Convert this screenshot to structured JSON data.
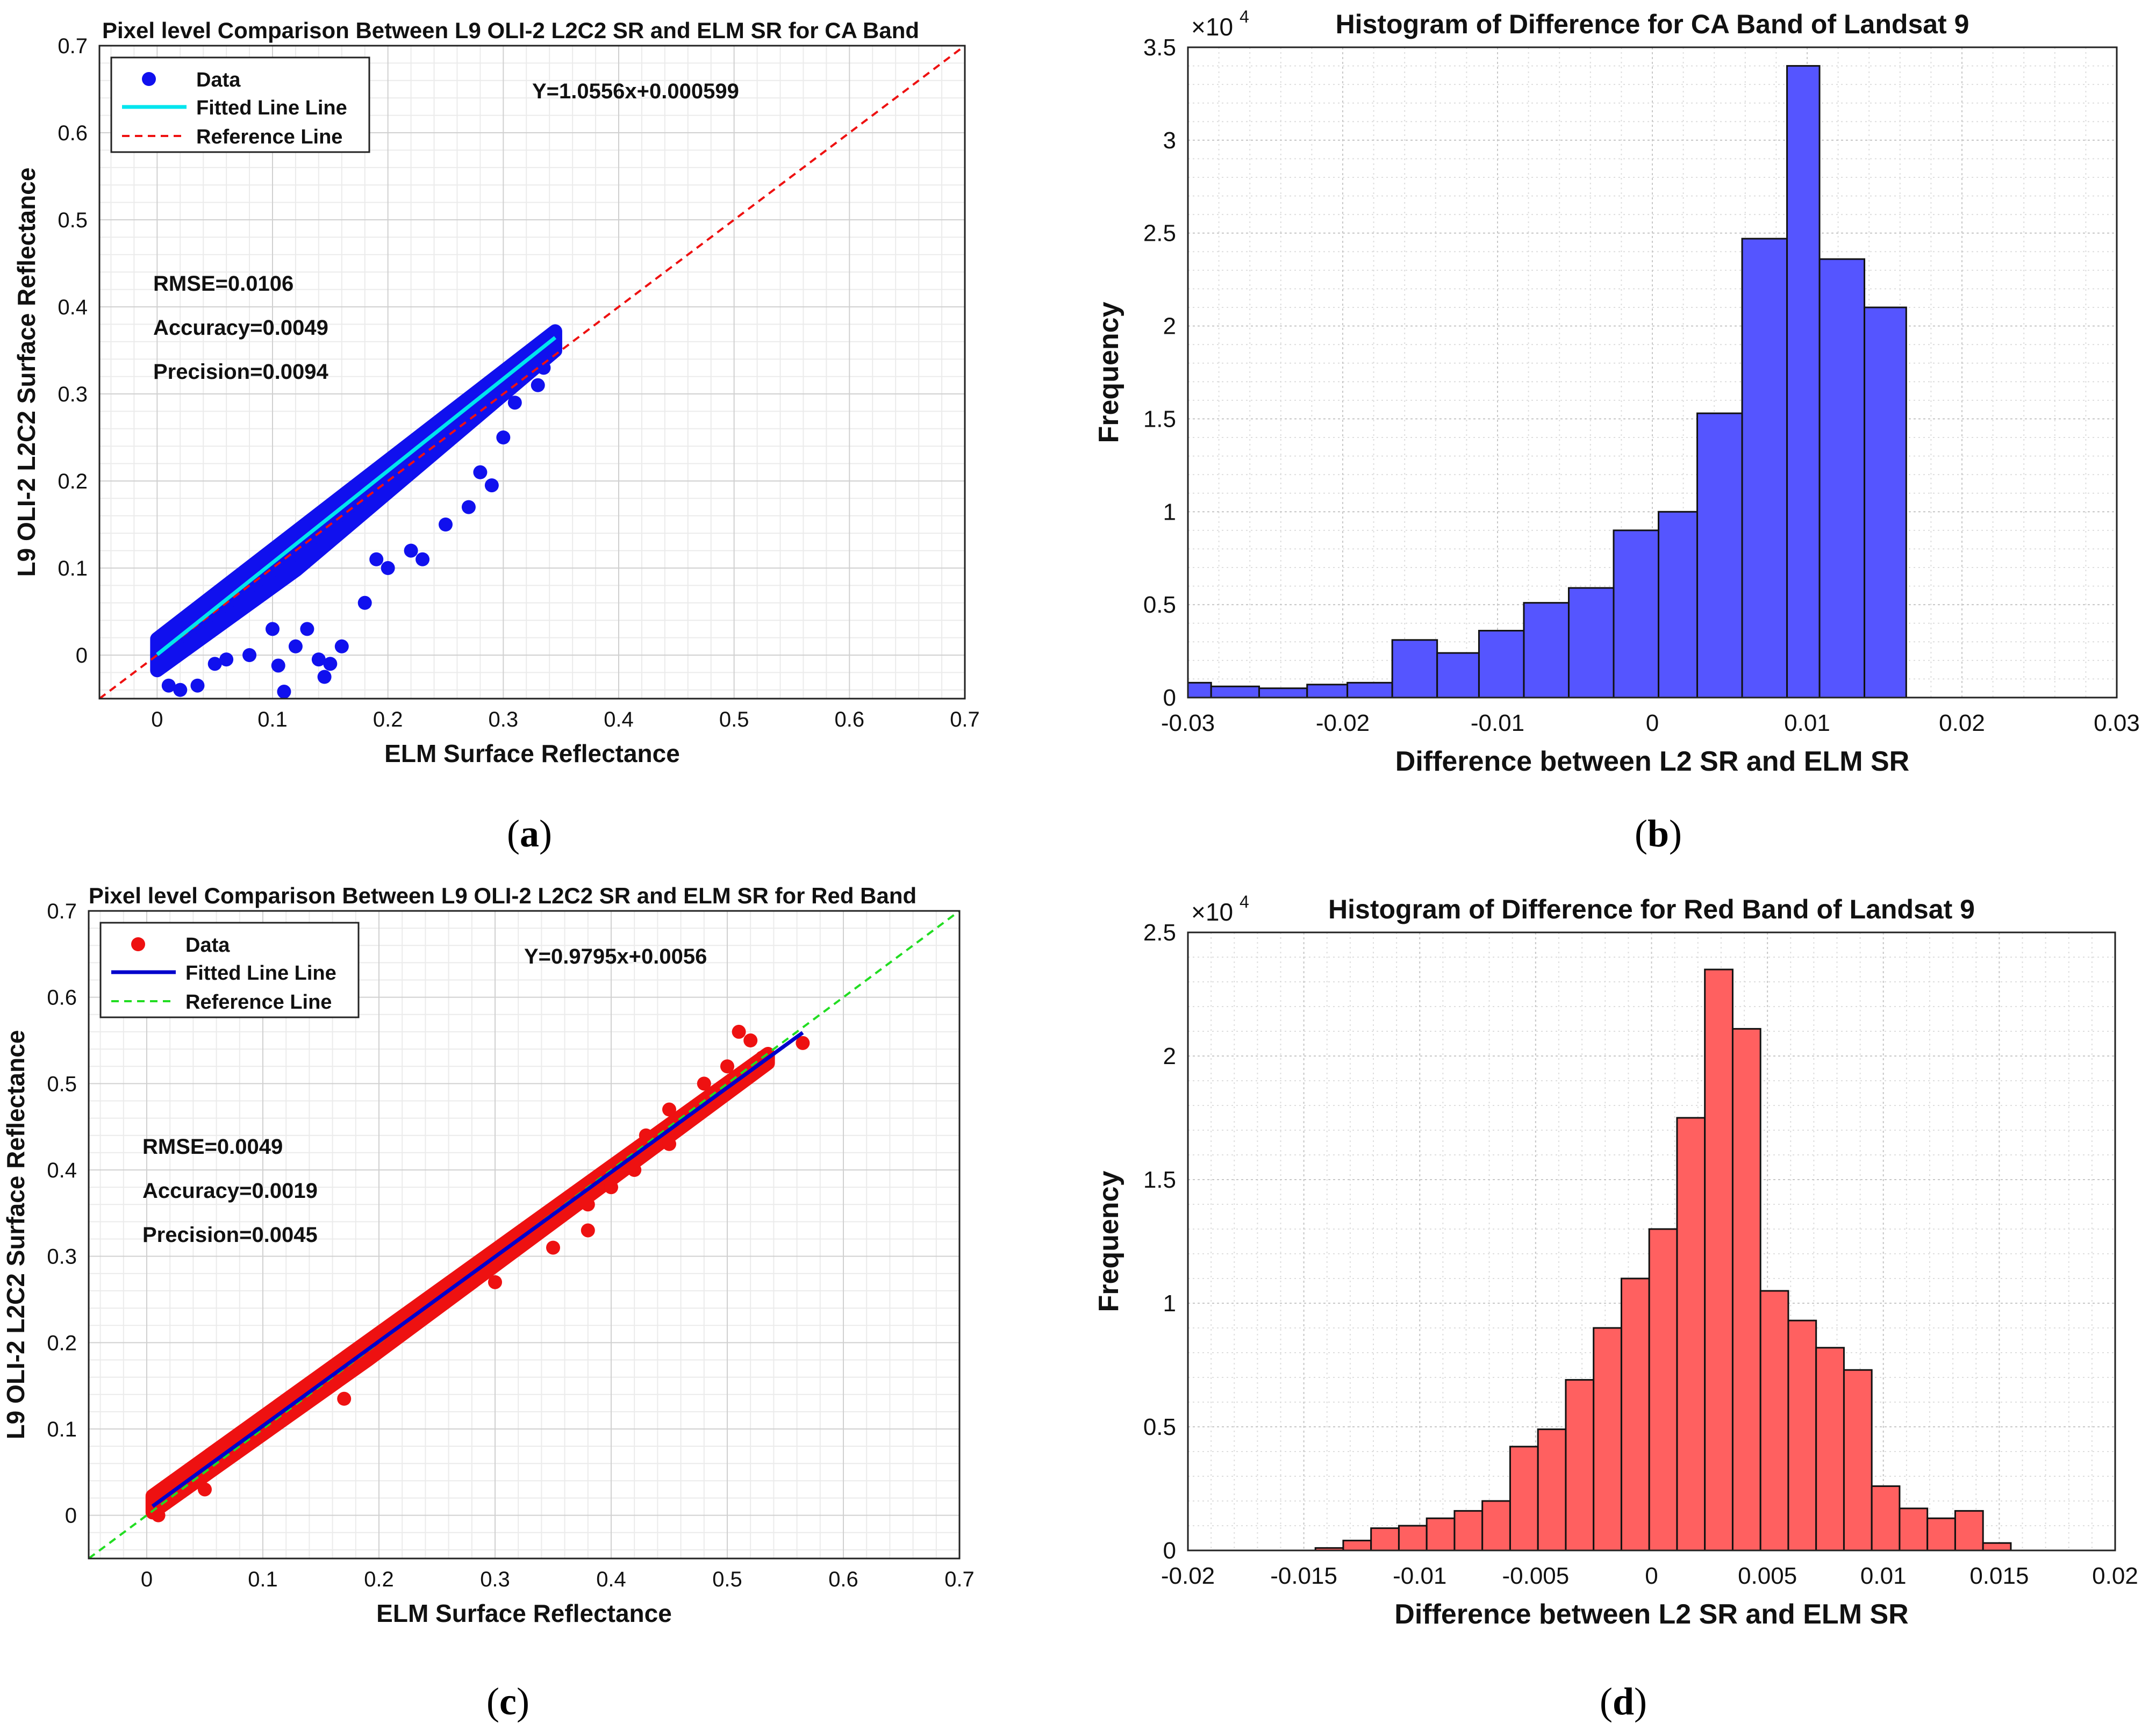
{
  "captions": {
    "a": "a",
    "b": "b",
    "c": "c",
    "d": "d"
  },
  "colors": {
    "blue_data": "#1010ee",
    "cyan_fit": "#00e5ee",
    "red_ref": "#ee1111",
    "red_data": "#ee1111",
    "blue_fit": "#0000cc",
    "green_ref": "#22dd22",
    "hist_blue": "#5555ff",
    "hist_red": "#ff6060"
  },
  "chart_data": [
    {
      "id": "a",
      "type": "scatter",
      "title": "Pixel level Comparison Between L9 OLI-2 L2C2 SR and ELM SR for CA Band",
      "xlabel": "ELM Surface Reflectance",
      "ylabel": "L9 OLI-2 L2C2 Surface Reflectance",
      "xlim": [
        -0.05,
        0.7
      ],
      "ylim": [
        -0.05,
        0.7
      ],
      "xticks": [
        "0",
        "0.1",
        "0.2",
        "0.3",
        "0.4",
        "0.5",
        "0.6",
        "0.7"
      ],
      "yticks": [
        "0",
        "0.1",
        "0.2",
        "0.3",
        "0.4",
        "0.5",
        "0.6",
        "0.7"
      ],
      "grid": true,
      "legend": {
        "position": "top-left",
        "entries": [
          "Data",
          "Fitted Line Line",
          "Reference Line"
        ]
      },
      "equation": "Y=1.0556x+0.000599",
      "stats": [
        "RMSE=0.0106",
        "Accuracy=0.0049",
        "Precision=0.0094"
      ],
      "fit": {
        "slope": 1.0556,
        "intercept": 0.000599,
        "x_range": [
          0.0,
          0.345
        ]
      },
      "reference": {
        "slope": 1,
        "intercept": 0
      },
      "band": {
        "x_range": [
          0.0,
          0.345
        ],
        "upper_offset": 0.018,
        "lower_offset": -0.03
      },
      "outliers": [
        [
          0.01,
          -0.035
        ],
        [
          0.02,
          -0.04
        ],
        [
          0.035,
          -0.035
        ],
        [
          0.05,
          -0.01
        ],
        [
          0.06,
          -0.005
        ],
        [
          0.08,
          0.0
        ],
        [
          0.1,
          0.03
        ],
        [
          0.105,
          -0.012
        ],
        [
          0.11,
          -0.042
        ],
        [
          0.12,
          0.01
        ],
        [
          0.13,
          0.03
        ],
        [
          0.14,
          -0.005
        ],
        [
          0.145,
          -0.025
        ],
        [
          0.15,
          -0.01
        ],
        [
          0.16,
          0.01
        ],
        [
          0.18,
          0.06
        ],
        [
          0.19,
          0.11
        ],
        [
          0.2,
          0.1
        ],
        [
          0.22,
          0.12
        ],
        [
          0.23,
          0.11
        ],
        [
          0.25,
          0.15
        ],
        [
          0.27,
          0.17
        ],
        [
          0.28,
          0.21
        ],
        [
          0.29,
          0.195
        ],
        [
          0.3,
          0.25
        ],
        [
          0.31,
          0.29
        ],
        [
          0.33,
          0.31
        ],
        [
          0.335,
          0.33
        ],
        [
          0.34,
          0.35
        ],
        [
          0.345,
          0.353
        ]
      ]
    },
    {
      "id": "b",
      "type": "bar",
      "title": "Histogram of Difference for CA Band of Landsat 9",
      "xlabel": "Difference between L2 SR and ELM SR",
      "ylabel": "Frequency",
      "exponent_label": "×10",
      "exponent": "4",
      "xlim": [
        -0.03,
        0.03
      ],
      "ylim": [
        0,
        3.5
      ],
      "xticks": [
        -0.03,
        -0.02,
        -0.01,
        0,
        0.01,
        0.02,
        0.03
      ],
      "xtick_labels": [
        "-0.03",
        "-0.02",
        "-0.01",
        "0",
        "0.01",
        "0.02",
        "0.03"
      ],
      "yticks": [
        0,
        0.5,
        1,
        1.5,
        2,
        2.5,
        3,
        3.5
      ],
      "ytick_labels": [
        "0",
        "0.5",
        "1",
        "1.5",
        "2",
        "2.5",
        "3",
        "3.5"
      ],
      "grid": true,
      "bin_edges": [
        -0.03,
        -0.0285,
        -0.0254,
        -0.0223,
        -0.0197,
        -0.0168,
        -0.0139,
        -0.0112,
        -0.0083,
        -0.0054,
        -0.0025,
        0.0004,
        0.0029,
        0.0058,
        0.0087,
        0.0108,
        0.0137,
        0.0164
      ],
      "values": [
        0.08,
        0.06,
        0.05,
        0.07,
        0.08,
        0.31,
        0.24,
        0.36,
        0.51,
        0.59,
        0.9,
        1.0,
        1.53,
        2.47,
        3.4,
        2.36,
        2.1
      ]
    },
    {
      "id": "c",
      "type": "scatter",
      "title": "Pixel level Comparison Between L9 OLI-2 L2C2 SR and ELM SR for Red Band",
      "xlabel": "ELM Surface Reflectance",
      "ylabel": "L9 OLI-2 L2C2 Surface Reflectance",
      "xlim": [
        -0.05,
        0.7
      ],
      "ylim": [
        -0.05,
        0.7
      ],
      "xticks": [
        "0",
        "0.1",
        "0.2",
        "0.3",
        "0.4",
        "0.5",
        "0.6",
        "0.7"
      ],
      "yticks": [
        "0",
        "0.1",
        "0.2",
        "0.3",
        "0.4",
        "0.5",
        "0.6",
        "0.7"
      ],
      "grid": true,
      "legend": {
        "position": "top-left",
        "entries": [
          "Data",
          "Fitted Line Line",
          "Reference Line"
        ]
      },
      "equation": "Y=0.9795x+0.0056",
      "stats": [
        "RMSE=0.0049",
        "Accuracy=0.0019",
        "Precision=0.0045"
      ],
      "fit": {
        "slope": 0.9795,
        "intercept": 0.0056,
        "x_range": [
          0.005,
          0.565
        ]
      },
      "reference": {
        "slope": 1,
        "intercept": 0
      },
      "band": {
        "x_range": [
          0.005,
          0.535
        ],
        "upper_offset": 0.012,
        "lower_offset": -0.012
      },
      "outliers": [
        [
          0.17,
          0.135
        ],
        [
          0.12,
          0.115
        ],
        [
          0.3,
          0.27
        ],
        [
          0.35,
          0.31
        ],
        [
          0.38,
          0.33
        ],
        [
          0.4,
          0.38
        ],
        [
          0.42,
          0.4
        ],
        [
          0.45,
          0.43
        ],
        [
          0.48,
          0.5
        ],
        [
          0.5,
          0.52
        ],
        [
          0.51,
          0.56
        ],
        [
          0.52,
          0.55
        ],
        [
          0.53,
          0.53
        ],
        [
          0.565,
          0.547
        ],
        [
          0.45,
          0.47
        ],
        [
          0.43,
          0.44
        ],
        [
          0.38,
          0.36
        ],
        [
          0.25,
          0.24
        ],
        [
          0.2,
          0.2
        ],
        [
          0.05,
          0.03
        ],
        [
          0.01,
          0.0
        ]
      ]
    },
    {
      "id": "d",
      "type": "bar",
      "title": "Histogram of Difference for Red Band of Landsat 9",
      "xlabel": "Difference between L2 SR and ELM SR",
      "ylabel": "Frequency",
      "exponent_label": "×10",
      "exponent": "4",
      "xlim": [
        -0.02,
        0.02
      ],
      "ylim": [
        0,
        2.5
      ],
      "xticks": [
        -0.02,
        -0.015,
        -0.01,
        -0.005,
        0,
        0.005,
        0.01,
        0.015,
        0.02
      ],
      "xtick_labels": [
        "-0.02",
        "-0.015",
        "-0.01",
        "-0.005",
        "0",
        "0.005",
        "0.01",
        "0.015",
        "0.02"
      ],
      "yticks": [
        0,
        0.5,
        1,
        1.5,
        2,
        2.5
      ],
      "ytick_labels": [
        "0",
        "0.5",
        "1",
        "1.5",
        "2",
        "2.5"
      ],
      "grid": true,
      "bin_edges": [
        -0.0145,
        -0.0133,
        -0.0121,
        -0.0109,
        -0.0097,
        -0.0085,
        -0.0073,
        -0.0061,
        -0.0049,
        -0.0037,
        -0.0025,
        -0.0013,
        -0.0001,
        0.0011,
        0.0023,
        0.0035,
        0.0047,
        0.0059,
        0.0071,
        0.0083,
        0.0095,
        0.0107,
        0.0119,
        0.0131,
        0.0143,
        0.0155
      ],
      "values": [
        0.01,
        0.04,
        0.09,
        0.1,
        0.13,
        0.16,
        0.2,
        0.42,
        0.49,
        0.69,
        0.9,
        1.1,
        1.3,
        1.75,
        2.35,
        2.11,
        1.05,
        0.93,
        0.82,
        0.73,
        0.26,
        0.17,
        0.13,
        0.16,
        0.03
      ]
    }
  ]
}
